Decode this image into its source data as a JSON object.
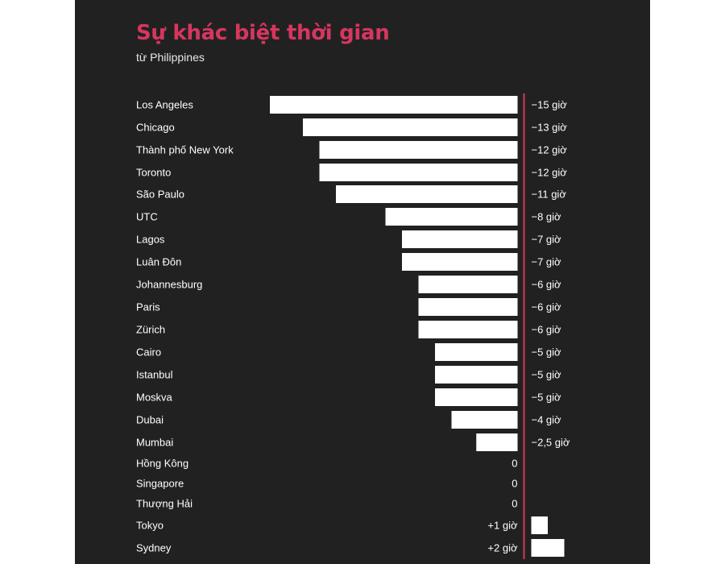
{
  "title": "Sự khác biệt thời gian",
  "subtitle": "từ Philippines",
  "colors": {
    "background": "#222122",
    "bar": "#ffffff",
    "accent": "#d6365f",
    "text": "#ffffff"
  },
  "chart_data": {
    "type": "bar",
    "orientation": "horizontal",
    "title": "Sự khác biệt thời gian",
    "subtitle": "từ Philippines",
    "unit": "giờ",
    "categories": [
      "Los Angeles",
      "Chicago",
      "Thành phố New York",
      "Toronto",
      "São Paulo",
      "UTC",
      "Lagos",
      "Luân Đôn",
      "Johannesburg",
      "Paris",
      "Zürich",
      "Cairo",
      "Istanbul",
      "Moskva",
      "Dubai",
      "Mumbai",
      "Hồng Kông",
      "Singapore",
      "Thượng Hải",
      "Tokyo",
      "Sydney"
    ],
    "values": [
      -15,
      -13,
      -12,
      -12,
      -11,
      -8,
      -7,
      -7,
      -6,
      -6,
      -6,
      -5,
      -5,
      -5,
      -4,
      -2.5,
      0,
      0,
      0,
      1,
      2
    ],
    "value_labels": [
      "−15 giờ",
      "−13 giờ",
      "−12 giờ",
      "−12 giờ",
      "−11 giờ",
      "−8 giờ",
      "−7 giờ",
      "−7 giờ",
      "−6 giờ",
      "−6 giờ",
      "−6 giờ",
      "−5 giờ",
      "−5 giờ",
      "−5 giờ",
      "−4 giờ",
      "−2,5 giờ",
      "0",
      "0",
      "0",
      "+1 giờ",
      "+2 giờ"
    ],
    "baseline": 0,
    "grid": false,
    "legend": "none"
  }
}
